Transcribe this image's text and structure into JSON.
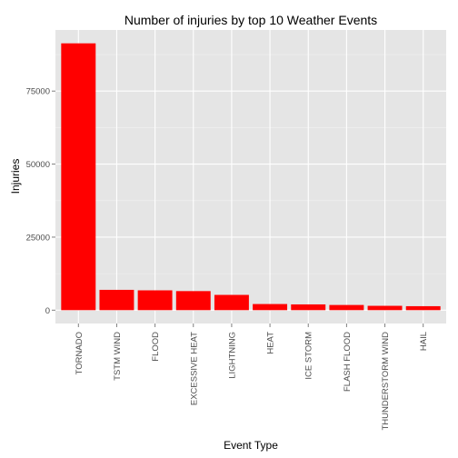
{
  "chart_data": {
    "type": "bar",
    "title": "Number of injuries by top 10 Weather Events",
    "xlabel": "Event Type",
    "ylabel": "Injuries",
    "categories": [
      "TORNADO",
      "TSTM WIND",
      "FLOOD",
      "EXCESSIVE HEAT",
      "LIGHTNING",
      "HEAT",
      "ICE STORM",
      "FLASH FLOOD",
      "THUNDERSTORM WIND",
      "HAIL"
    ],
    "values": [
      91346,
      6957,
      6789,
      6525,
      5230,
      2100,
      1975,
      1777,
      1488,
      1361
    ],
    "yticks": [
      0,
      25000,
      50000,
      75000
    ],
    "ylim": [
      -4567,
      95913
    ],
    "grid": true,
    "legend": "none",
    "colors": {
      "bar": "#ff0000",
      "panel": "#e5e5e5",
      "grid_major": "#ffffff",
      "grid_minor": "#f2f2f2",
      "tick_text": "#4d4d4d",
      "text": "#000000"
    }
  }
}
